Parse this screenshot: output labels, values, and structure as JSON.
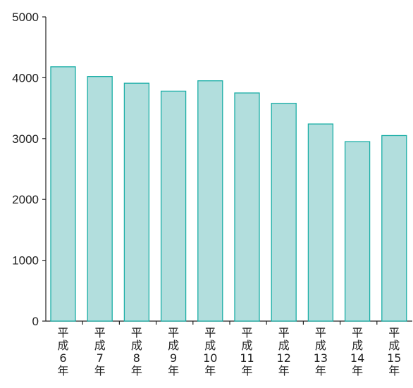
{
  "chart_data": {
    "type": "bar",
    "title": "",
    "xlabel": "",
    "ylabel": "",
    "categories": [
      "平成6年",
      "平成7年",
      "平成8年",
      "平成9年",
      "平成10年",
      "平成11年",
      "平成12年",
      "平成13年",
      "平成14年",
      "平成15年"
    ],
    "category_labels": [
      [
        "平",
        "成",
        "6",
        "年"
      ],
      [
        "平",
        "成",
        "7",
        "年"
      ],
      [
        "平",
        "成",
        "8",
        "年"
      ],
      [
        "平",
        "成",
        "9",
        "年"
      ],
      [
        "平",
        "成",
        "10",
        "年"
      ],
      [
        "平",
        "成",
        "11",
        "年"
      ],
      [
        "平",
        "成",
        "12",
        "年"
      ],
      [
        "平",
        "成",
        "13",
        "年"
      ],
      [
        "平",
        "成",
        "14",
        "年"
      ],
      [
        "平",
        "成",
        "15",
        "年"
      ]
    ],
    "values": [
      4180,
      4020,
      3910,
      3780,
      3950,
      3750,
      3580,
      3240,
      2950,
      3050
    ],
    "ylim": [
      0,
      5000
    ],
    "yticks": [
      0,
      1000,
      2000,
      3000,
      4000,
      5000
    ],
    "grid": false,
    "legend": "none",
    "colors": {
      "bar_fill": "#b2dedd",
      "bar_stroke": "#1aaea6",
      "axis": "#222222"
    }
  }
}
